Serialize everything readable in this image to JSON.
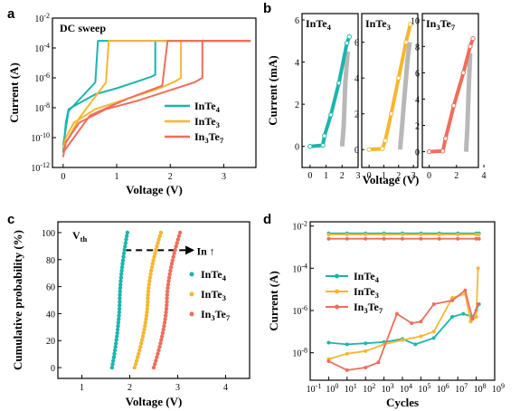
{
  "colors": {
    "InTe4": "#1bb5ad",
    "InTe3": "#f5b731",
    "In3Te7": "#ee6e5c",
    "gray": "#b8b8b8"
  },
  "chart_data": [
    {
      "panel": "a",
      "type": "line",
      "annotation": "DC sweep",
      "xlabel": "Voltage (V)",
      "ylabel": "Current (A)",
      "xlim": [
        -0.2,
        3.6
      ],
      "ylim_log10": [
        -12,
        -2
      ],
      "log_y": true,
      "xticks": [
        "0",
        "1",
        "2",
        "3"
      ],
      "yticks": [
        "10^-12",
        "10^-10",
        "10^-8",
        "10^-6",
        "10^-4",
        "10^-2"
      ],
      "legend": [
        "InTe4",
        "InTe3",
        "In3Te7"
      ],
      "legend_position": "bottom-right",
      "series": [
        {
          "name": "InTe4",
          "color_key": "InTe4",
          "forward": [
            [
              0,
              1e-11
            ],
            [
              0.05,
              1e-09
            ],
            [
              0.1,
              8e-09
            ],
            [
              0.3,
              2e-08
            ],
            [
              0.6,
              8e-08
            ],
            [
              1.0,
              2e-07
            ],
            [
              1.4,
              6e-07
            ],
            [
              1.65,
              1.2e-06
            ],
            [
              1.72,
              1.6e-06
            ],
            [
              1.72,
              0.0003
            ],
            [
              3.5,
              0.0003
            ]
          ],
          "backward": [
            [
              3.5,
              0.0003
            ],
            [
              0.65,
              0.0003
            ],
            [
              0.6,
              5e-07
            ],
            [
              0.1,
              6e-09
            ],
            [
              0,
              3e-11
            ]
          ]
        },
        {
          "name": "InTe3",
          "color_key": "InTe3",
          "forward": [
            [
              0,
              2e-11
            ],
            [
              0.05,
              1e-10
            ],
            [
              0.2,
              1e-09
            ],
            [
              0.6,
              8e-09
            ],
            [
              1.2,
              4e-08
            ],
            [
              1.8,
              2e-07
            ],
            [
              2.1,
              6e-07
            ],
            [
              2.2,
              1e-06
            ],
            [
              2.2,
              0.0003
            ],
            [
              3.5,
              0.0003
            ]
          ],
          "backward": [
            [
              3.5,
              0.0003
            ],
            [
              0.85,
              0.0003
            ],
            [
              0.8,
              5e-07
            ],
            [
              0.3,
              2e-09
            ],
            [
              0,
              2e-11
            ]
          ]
        },
        {
          "name": "In3Te7",
          "color_key": "In3Te7",
          "forward": [
            [
              0,
              5e-12
            ],
            [
              0.05,
              5e-11
            ],
            [
              0.3,
              1e-09
            ],
            [
              0.8,
              8e-09
            ],
            [
              1.4,
              3e-08
            ],
            [
              2.0,
              1.5e-07
            ],
            [
              2.45,
              5e-07
            ],
            [
              2.6,
              1e-06
            ],
            [
              2.6,
              0.0003
            ],
            [
              3.5,
              0.0003
            ]
          ],
          "backward": [
            [
              3.5,
              0.0003
            ],
            [
              1.95,
              0.0003
            ],
            [
              1.85,
              3e-07
            ],
            [
              1.2,
              4e-08
            ],
            [
              0.5,
              3e-09
            ],
            [
              0,
              1e-11
            ]
          ]
        }
      ]
    },
    {
      "panel": "b",
      "type": "line",
      "subplots": [
        {
          "title_base": "InTe",
          "title_sub": "4",
          "title_parts": [
            [
              "InTe",
              ""
            ],
            [
              "4",
              "sub"
            ]
          ],
          "color_key": "InTe4",
          "xlim": [
            -0.5,
            3
          ],
          "ylim": [
            -1,
            6.3
          ],
          "xticks": [
            "0",
            "1",
            "2",
            "3"
          ],
          "yticks": [
            "0",
            "2",
            "4",
            "6"
          ],
          "colored_line": [
            [
              0,
              0
            ],
            [
              0.8,
              0.05
            ],
            [
              0.9,
              0.5
            ],
            [
              1.3,
              1.5
            ],
            [
              1.8,
              3.0
            ],
            [
              2.3,
              4.9
            ],
            [
              2.45,
              5.2
            ]
          ],
          "gray_line": [
            [
              2.0,
              0
            ],
            [
              2.1,
              1.0
            ],
            [
              2.2,
              3.0
            ],
            [
              2.35,
              4.5
            ]
          ]
        },
        {
          "title_base": "InTe",
          "title_sub": "3",
          "title_parts": [
            [
              "InTe",
              ""
            ],
            [
              "3",
              "sub"
            ]
          ],
          "color_key": "InTe3",
          "xlim": [
            -0.5,
            3.3
          ],
          "ylim": [
            -1,
            7.6
          ],
          "xticks": [
            "0",
            "1",
            "2",
            "3"
          ],
          "yticks": [
            "0",
            "2",
            "4",
            "6"
          ],
          "colored_line": [
            [
              0,
              0
            ],
            [
              0.9,
              0.05
            ],
            [
              1.1,
              0.5
            ],
            [
              1.5,
              2.0
            ],
            [
              2.0,
              4.0
            ],
            [
              2.5,
              6.0
            ],
            [
              2.8,
              7.0
            ]
          ],
          "gray_line": [
            [
              2.1,
              0
            ],
            [
              2.2,
              1.0
            ],
            [
              2.4,
              3.0
            ],
            [
              2.6,
              5.0
            ],
            [
              2.75,
              6.0
            ]
          ]
        },
        {
          "title_base": "In",
          "title_sub": "3",
          "title_parts": [
            [
              "In",
              ""
            ],
            [
              "3",
              "sub"
            ],
            [
              "Te",
              ""
            ],
            [
              "7",
              "sub"
            ]
          ],
          "color_key": "In3Te7",
          "xlim": [
            -0.5,
            3.6
          ],
          "ylim": [
            -1.2,
            10.5
          ],
          "xticks": [
            "0",
            "2",
            "4"
          ],
          "yticks": [
            "0",
            "2",
            "4",
            "6",
            "8",
            "10"
          ],
          "colored_line": [
            [
              0,
              0
            ],
            [
              1.0,
              0.05
            ],
            [
              1.2,
              1.0
            ],
            [
              1.8,
              3.5
            ],
            [
              2.5,
              6.0
            ],
            [
              3.0,
              8.0
            ],
            [
              3.2,
              8.6
            ]
          ],
          "gray_line": [
            [
              2.7,
              0
            ],
            [
              2.8,
              2.0
            ],
            [
              2.9,
              5.0
            ],
            [
              3.0,
              7.5
            ]
          ]
        }
      ],
      "xlabel": "Voltage (V)",
      "ylabel": "Current (mA)"
    },
    {
      "panel": "c",
      "type": "scatter",
      "annotation": "V",
      "annotation_sub": "th",
      "arrow_label": "In ↑",
      "xlabel": "Voltage (V)",
      "ylabel": "Cumulative probability (%)",
      "xlim": [
        0.5,
        4.5
      ],
      "ylim": [
        -8,
        108
      ],
      "xticks": [
        "1",
        "2",
        "3",
        "4"
      ],
      "yticks": [
        "0",
        "20",
        "40",
        "60",
        "80",
        "100"
      ],
      "legend": [
        "InTe4",
        "InTe3",
        "In3Te7"
      ],
      "legend_position": "right",
      "series": [
        {
          "name": "InTe4",
          "color_key": "InTe4",
          "v_min": 1.63,
          "v_max": 1.95
        },
        {
          "name": "InTe3",
          "color_key": "InTe3",
          "v_min": 2.1,
          "v_max": 2.65
        },
        {
          "name": "In3Te7",
          "color_key": "In3Te7",
          "v_min": 2.5,
          "v_max": 3.05
        }
      ]
    },
    {
      "panel": "d",
      "type": "line",
      "xlabel": "Cycles",
      "ylabel": "Current (A)",
      "log_x": true,
      "log_y": true,
      "xlim_log10": [
        -1,
        9
      ],
      "ylim_log10": [
        -9.3,
        -1.8
      ],
      "xticks": [
        "10^-1",
        "10^0",
        "10^1",
        "10^2",
        "10^3",
        "10^4",
        "10^5",
        "10^6",
        "10^7",
        "10^8",
        "10^9"
      ],
      "yticks": [
        "10^-8",
        "10^-6",
        "10^-4",
        "10^-2"
      ],
      "legend": [
        "InTe4",
        "InTe3",
        "In3Te7"
      ],
      "legend_position": "middle-left",
      "series": [
        {
          "name": "InTe4",
          "color_key": "InTe4",
          "on_state": [
            [
              0,
              0.0045
            ],
            [
              1,
              0.0045
            ],
            [
              2,
              0.0045
            ],
            [
              3,
              0.0045
            ],
            [
              4,
              0.0045
            ],
            [
              5,
              0.0045
            ],
            [
              6,
              0.0045
            ],
            [
              7,
              0.0045
            ],
            [
              8,
              0.0045
            ],
            [
              8.15,
              0.0045
            ]
          ],
          "off_state": [
            [
              0,
              3e-08
            ],
            [
              1,
              2.5e-08
            ],
            [
              2,
              2.8e-08
            ],
            [
              3,
              3.2e-08
            ],
            [
              4,
              4.5e-08
            ],
            [
              4.7,
              2.5e-08
            ],
            [
              5.7,
              5e-08
            ],
            [
              6.7,
              5e-07
            ],
            [
              7.3,
              7e-07
            ],
            [
              7.8,
              5e-07
            ],
            [
              8,
              1e-06
            ],
            [
              8.15,
              2e-06
            ]
          ]
        },
        {
          "name": "InTe3",
          "color_key": "InTe3",
          "on_state": [
            [
              0,
              0.004
            ],
            [
              1,
              0.004
            ],
            [
              2,
              0.004
            ],
            [
              3,
              0.004
            ],
            [
              4,
              0.004
            ],
            [
              5,
              0.004
            ],
            [
              6,
              0.004
            ],
            [
              7,
              0.004
            ],
            [
              8,
              0.004
            ],
            [
              8.15,
              0.004
            ]
          ],
          "off_state": [
            [
              0,
              5e-09
            ],
            [
              1,
              9e-09
            ],
            [
              2,
              1.2e-08
            ],
            [
              3,
              2.5e-08
            ],
            [
              4,
              4e-08
            ],
            [
              5,
              6e-08
            ],
            [
              5.7,
              1e-07
            ],
            [
              6.7,
              4e-06
            ],
            [
              7.4,
              6e-06
            ],
            [
              7.7,
              3e-07
            ],
            [
              8,
              5e-07
            ],
            [
              8.1,
              0.0001
            ]
          ]
        },
        {
          "name": "In3Te7",
          "color_key": "In3Te7",
          "on_state": [
            [
              0,
              0.0025
            ],
            [
              1,
              0.0025
            ],
            [
              2,
              0.0025
            ],
            [
              3,
              0.0025
            ],
            [
              4,
              0.0025
            ],
            [
              5,
              0.0025
            ],
            [
              6,
              0.0025
            ],
            [
              7,
              0.0025
            ],
            [
              8,
              0.0025
            ],
            [
              8.15,
              0.0025
            ]
          ],
          "off_state": [
            [
              0,
              4e-09
            ],
            [
              1,
              1.5e-09
            ],
            [
              2,
              2e-09
            ],
            [
              2.7,
              3.5e-09
            ],
            [
              3.7,
              7e-07
            ],
            [
              4.5,
              2.5e-07
            ],
            [
              5,
              3e-07
            ],
            [
              5.7,
              2e-06
            ],
            [
              6.7,
              3e-06
            ],
            [
              7.4,
              9e-06
            ],
            [
              7.8,
              4e-07
            ],
            [
              8.1,
              2e-06
            ]
          ]
        }
      ]
    }
  ]
}
